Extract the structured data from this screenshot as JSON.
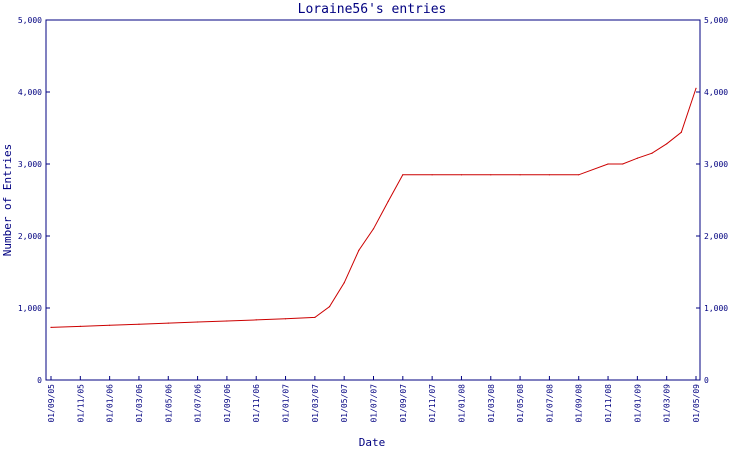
{
  "chart_data": {
    "type": "line",
    "title": "Loraine56's entries",
    "xlabel": "Date",
    "ylabel": "Number of Entries",
    "ylim": [
      0,
      5000
    ],
    "y_ticks": [
      0,
      1000,
      2000,
      3000,
      4000,
      5000
    ],
    "y_tick_labels": [
      "0",
      "1,000",
      "2,000",
      "3,000",
      "4,000",
      "5,000"
    ],
    "y_axis_right": true,
    "grid": false,
    "x_tick_labels": [
      "01/09/05",
      "01/11/05",
      "01/01/06",
      "01/03/06",
      "01/05/06",
      "01/07/06",
      "01/09/06",
      "01/11/06",
      "01/01/07",
      "01/03/07",
      "01/05/07",
      "01/07/07",
      "01/09/07",
      "01/11/07",
      "01/01/08",
      "01/03/08",
      "01/05/08",
      "01/07/08",
      "01/09/08",
      "01/11/08",
      "01/01/09",
      "01/03/09",
      "01/05/09"
    ],
    "series": [
      {
        "color": "#cc0000",
        "points": [
          {
            "x": "01/09/05",
            "y": 730
          },
          {
            "x": "01/11/05",
            "y": 745
          },
          {
            "x": "01/01/06",
            "y": 760
          },
          {
            "x": "01/03/06",
            "y": 775
          },
          {
            "x": "01/05/06",
            "y": 790
          },
          {
            "x": "01/07/06",
            "y": 805
          },
          {
            "x": "01/09/06",
            "y": 820
          },
          {
            "x": "01/11/06",
            "y": 835
          },
          {
            "x": "01/01/07",
            "y": 850
          },
          {
            "x": "01/03/07",
            "y": 870
          },
          {
            "x": "01/04/07",
            "y": 1020
          },
          {
            "x": "01/05/07",
            "y": 1350
          },
          {
            "x": "01/06/07",
            "y": 1800
          },
          {
            "x": "01/07/07",
            "y": 2100
          },
          {
            "x": "01/08/07",
            "y": 2480
          },
          {
            "x": "01/09/07",
            "y": 2850
          },
          {
            "x": "01/11/07",
            "y": 2850
          },
          {
            "x": "01/01/08",
            "y": 2850
          },
          {
            "x": "01/03/08",
            "y": 2850
          },
          {
            "x": "01/05/08",
            "y": 2850
          },
          {
            "x": "01/07/08",
            "y": 2850
          },
          {
            "x": "01/09/08",
            "y": 2850
          },
          {
            "x": "01/11/08",
            "y": 3000
          },
          {
            "x": "01/12/08",
            "y": 3000
          },
          {
            "x": "01/01/09",
            "y": 3080
          },
          {
            "x": "01/02/09",
            "y": 3150
          },
          {
            "x": "01/03/09",
            "y": 3280
          },
          {
            "x": "01/04/09",
            "y": 3440
          },
          {
            "x": "01/05/09",
            "y": 4050
          }
        ]
      }
    ]
  }
}
